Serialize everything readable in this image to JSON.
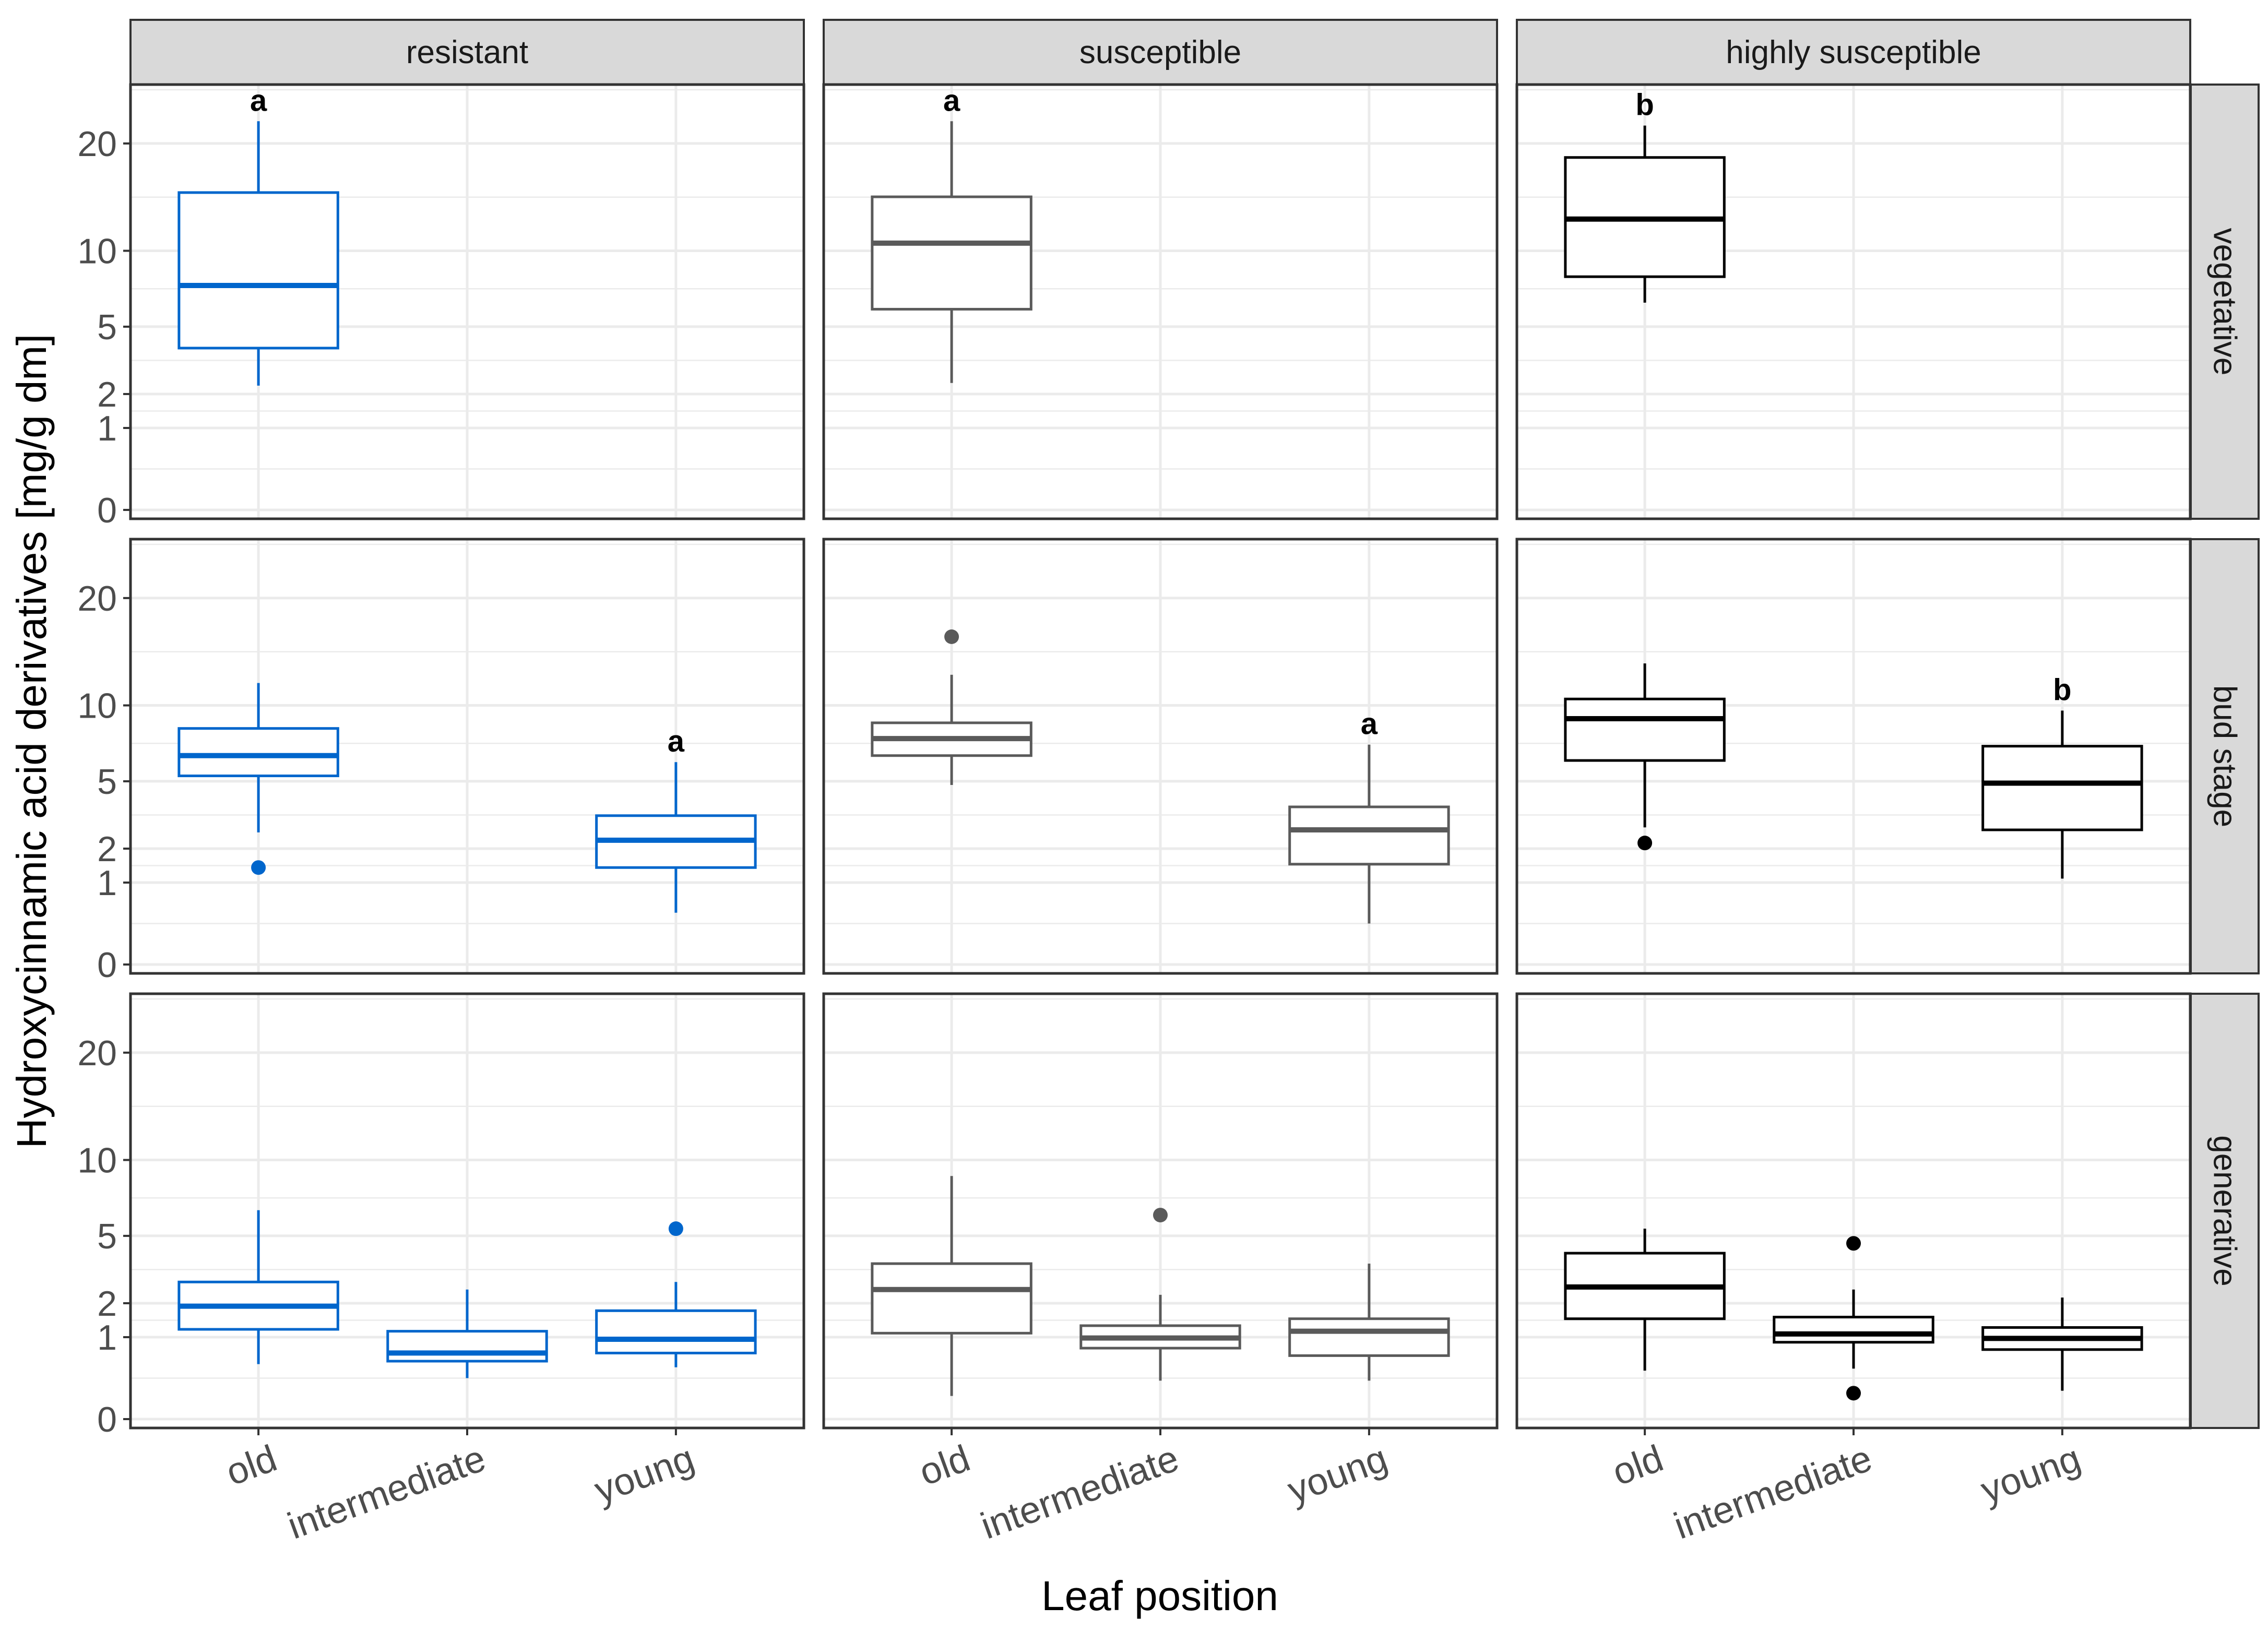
{
  "chart_data": {
    "type": "boxplot",
    "xlabel": "Leaf position",
    "ylabel": "Hydroxycinnamic acid derivatives [mg/g dm]",
    "y_scale": "sqrt",
    "y_ticks": [
      0,
      1,
      2,
      5,
      10,
      20
    ],
    "ylim": [
      0,
      25
    ],
    "categories": [
      "old",
      "intermediate",
      "young"
    ],
    "columns": [
      "resistant",
      "susceptible",
      "highly susceptible"
    ],
    "rows": [
      "vegetative",
      "bud stage",
      "generative"
    ],
    "colors": {
      "resistant": "#0066cc",
      "susceptible": "#5a5a5a",
      "highly susceptible": "#000000",
      "grid": "#ebebeb",
      "strip": "#d9d9d9"
    },
    "panels": [
      {
        "row": "vegetative",
        "column": "resistant",
        "boxes": [
          {
            "category": "old",
            "lower": 2.3,
            "q1": 3.9,
            "median": 7.5,
            "q3": 15.0,
            "upper": 22.5,
            "outliers": [],
            "letter": "a"
          }
        ]
      },
      {
        "row": "vegetative",
        "column": "susceptible",
        "boxes": [
          {
            "category": "old",
            "lower": 2.4,
            "q1": 6.0,
            "median": 10.6,
            "q3": 14.6,
            "upper": 22.5,
            "outliers": [],
            "letter": "a"
          }
        ]
      },
      {
        "row": "vegetative",
        "column": "highly susceptible",
        "boxes": [
          {
            "category": "old",
            "lower": 6.4,
            "q1": 8.1,
            "median": 12.6,
            "q3": 18.5,
            "upper": 22.0,
            "outliers": [],
            "letter": "b"
          }
        ]
      },
      {
        "row": "bud stage",
        "column": "resistant",
        "boxes": [
          {
            "category": "old",
            "lower": 2.6,
            "q1": 5.3,
            "median": 6.5,
            "q3": 8.3,
            "upper": 11.8,
            "outliers": [
              1.4
            ],
            "letter": ""
          },
          {
            "category": "young",
            "lower": 0.4,
            "q1": 1.4,
            "median": 2.3,
            "q3": 3.3,
            "upper": 6.1,
            "outliers": [],
            "letter": "a"
          }
        ]
      },
      {
        "row": "bud stage",
        "column": "susceptible",
        "boxes": [
          {
            "category": "old",
            "lower": 4.8,
            "q1": 6.5,
            "median": 7.6,
            "q3": 8.7,
            "upper": 12.5,
            "outliers": [
              16.0
            ],
            "letter": ""
          },
          {
            "category": "young",
            "lower": 0.25,
            "q1": 1.5,
            "median": 2.7,
            "q3": 3.7,
            "upper": 7.2,
            "outliers": [],
            "letter": "a"
          }
        ]
      },
      {
        "row": "bud stage",
        "column": "highly susceptible",
        "boxes": [
          {
            "category": "old",
            "lower": 2.8,
            "q1": 6.2,
            "median": 9.0,
            "q3": 10.5,
            "upper": 13.5,
            "outliers": [
              2.2
            ],
            "letter": ""
          },
          {
            "category": "young",
            "lower": 1.1,
            "q1": 2.7,
            "median": 4.9,
            "q3": 7.1,
            "upper": 9.6,
            "outliers": [],
            "letter": "b"
          }
        ]
      },
      {
        "row": "generative",
        "column": "resistant",
        "boxes": [
          {
            "category": "old",
            "lower": 0.45,
            "q1": 1.2,
            "median": 1.9,
            "q3": 2.8,
            "upper": 6.5,
            "outliers": [],
            "letter": ""
          },
          {
            "category": "intermediate",
            "lower": 0.25,
            "q1": 0.5,
            "median": 0.65,
            "q3": 1.15,
            "upper": 2.5,
            "outliers": [],
            "letter": ""
          },
          {
            "category": "young",
            "lower": 0.4,
            "q1": 0.65,
            "median": 0.95,
            "q3": 1.75,
            "upper": 2.8,
            "outliers": [
              5.4
            ],
            "letter": ""
          }
        ]
      },
      {
        "row": "generative",
        "column": "susceptible",
        "boxes": [
          {
            "category": "old",
            "lower": 0.08,
            "q1": 1.1,
            "median": 2.5,
            "q3": 3.6,
            "upper": 8.8,
            "outliers": [],
            "letter": ""
          },
          {
            "category": "intermediate",
            "lower": 0.22,
            "q1": 0.75,
            "median": 0.98,
            "q3": 1.3,
            "upper": 2.3,
            "outliers": [
              6.2
            ],
            "letter": ""
          },
          {
            "category": "young",
            "lower": 0.22,
            "q1": 0.6,
            "median": 1.15,
            "q3": 1.5,
            "upper": 3.6,
            "outliers": [],
            "letter": ""
          }
        ]
      },
      {
        "row": "generative",
        "column": "highly susceptible",
        "boxes": [
          {
            "category": "old",
            "lower": 0.35,
            "q1": 1.5,
            "median": 2.6,
            "q3": 4.1,
            "upper": 5.4,
            "outliers": [],
            "letter": ""
          },
          {
            "category": "intermediate",
            "lower": 0.38,
            "q1": 0.88,
            "median": 1.08,
            "q3": 1.55,
            "upper": 2.5,
            "outliers": [
              4.6,
              0.1
            ],
            "letter": ""
          },
          {
            "category": "young",
            "lower": 0.12,
            "q1": 0.72,
            "median": 0.97,
            "q3": 1.25,
            "upper": 2.2,
            "outliers": [],
            "letter": ""
          }
        ]
      }
    ]
  }
}
